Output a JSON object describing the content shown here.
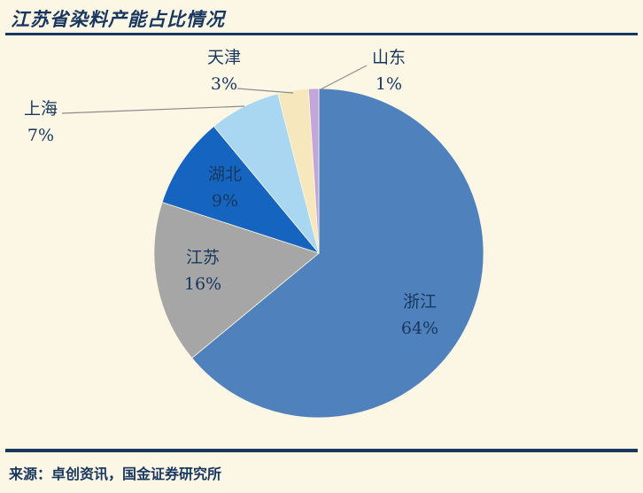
{
  "title": "江苏省染料产能占比情况",
  "source": "来源：卓创资讯，国金证券研究所",
  "colors": {
    "background": "#FCF6E5",
    "title": "#17375E",
    "label": "#17375E",
    "rule": "#17375E",
    "leader_line": "#8C8C8C"
  },
  "chart_data": {
    "type": "pie",
    "title": "江苏省染料产能占比情况",
    "categories": [
      "浙江",
      "江苏",
      "湖北",
      "上海",
      "天津",
      "山东"
    ],
    "values": [
      64,
      16,
      9,
      7,
      3,
      1
    ],
    "percent_labels": [
      "64%",
      "16%",
      "9%",
      "7%",
      "3%",
      "1%"
    ],
    "slice_colors": [
      "#4F81BD",
      "#A6A6A6",
      "#1565C0",
      "#A9D7F2",
      "#F7E7BC",
      "#C3A6D9"
    ],
    "start_angle_deg": 0,
    "direction": "clockwise",
    "legend_position": "none",
    "label_style": "category name with percent, outside leader lines for small slices"
  }
}
